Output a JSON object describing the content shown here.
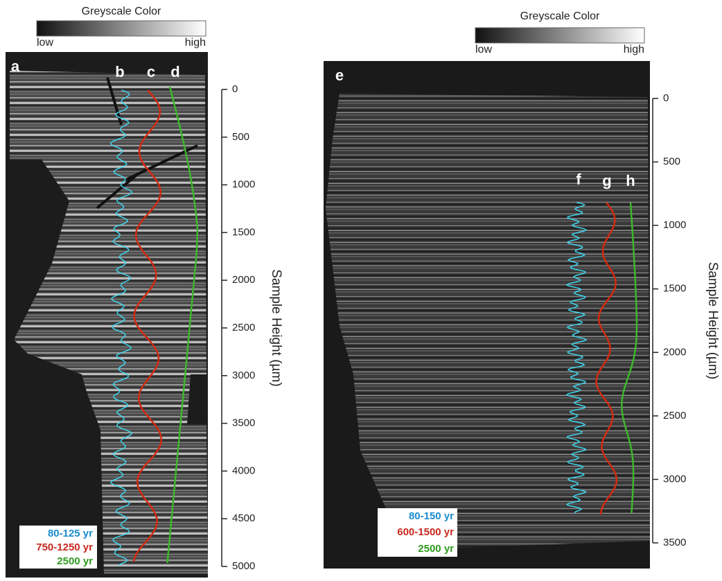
{
  "panels": [
    {
      "colorbar": {
        "title": "Greyscale Color",
        "low": "low",
        "high": "high"
      },
      "letters": [
        "a",
        "b",
        "c",
        "d"
      ],
      "axis": {
        "label": "Sample Height (µm)",
        "lim": [
          0,
          5000
        ],
        "ticks": [
          0,
          500,
          1000,
          1500,
          2000,
          2500,
          3000,
          3500,
          4000,
          4500,
          5000
        ]
      },
      "legend": [
        {
          "text": "80-125 yr",
          "color": "#1a8ccf"
        },
        {
          "text": "750-1250 yr",
          "color": "#c8281e"
        },
        {
          "text": "2500 yr",
          "color": "#2e9a1e"
        }
      ]
    },
    {
      "colorbar": {
        "title": "Greyscale Color",
        "low": "low",
        "high": "high"
      },
      "letters": [
        "e",
        "f",
        "g",
        "h"
      ],
      "axis": {
        "label": "Sample Height (µm)",
        "lim": [
          0,
          3500
        ],
        "ticks": [
          0,
          500,
          1000,
          1500,
          2000,
          2500,
          3000,
          3500
        ]
      },
      "legend": [
        {
          "text": "80-150 yr",
          "color": "#1a8ccf"
        },
        {
          "text": "600-1500 yr",
          "color": "#c8281e"
        },
        {
          "text": "2500 yr",
          "color": "#2e9a1e"
        }
      ]
    }
  ]
}
